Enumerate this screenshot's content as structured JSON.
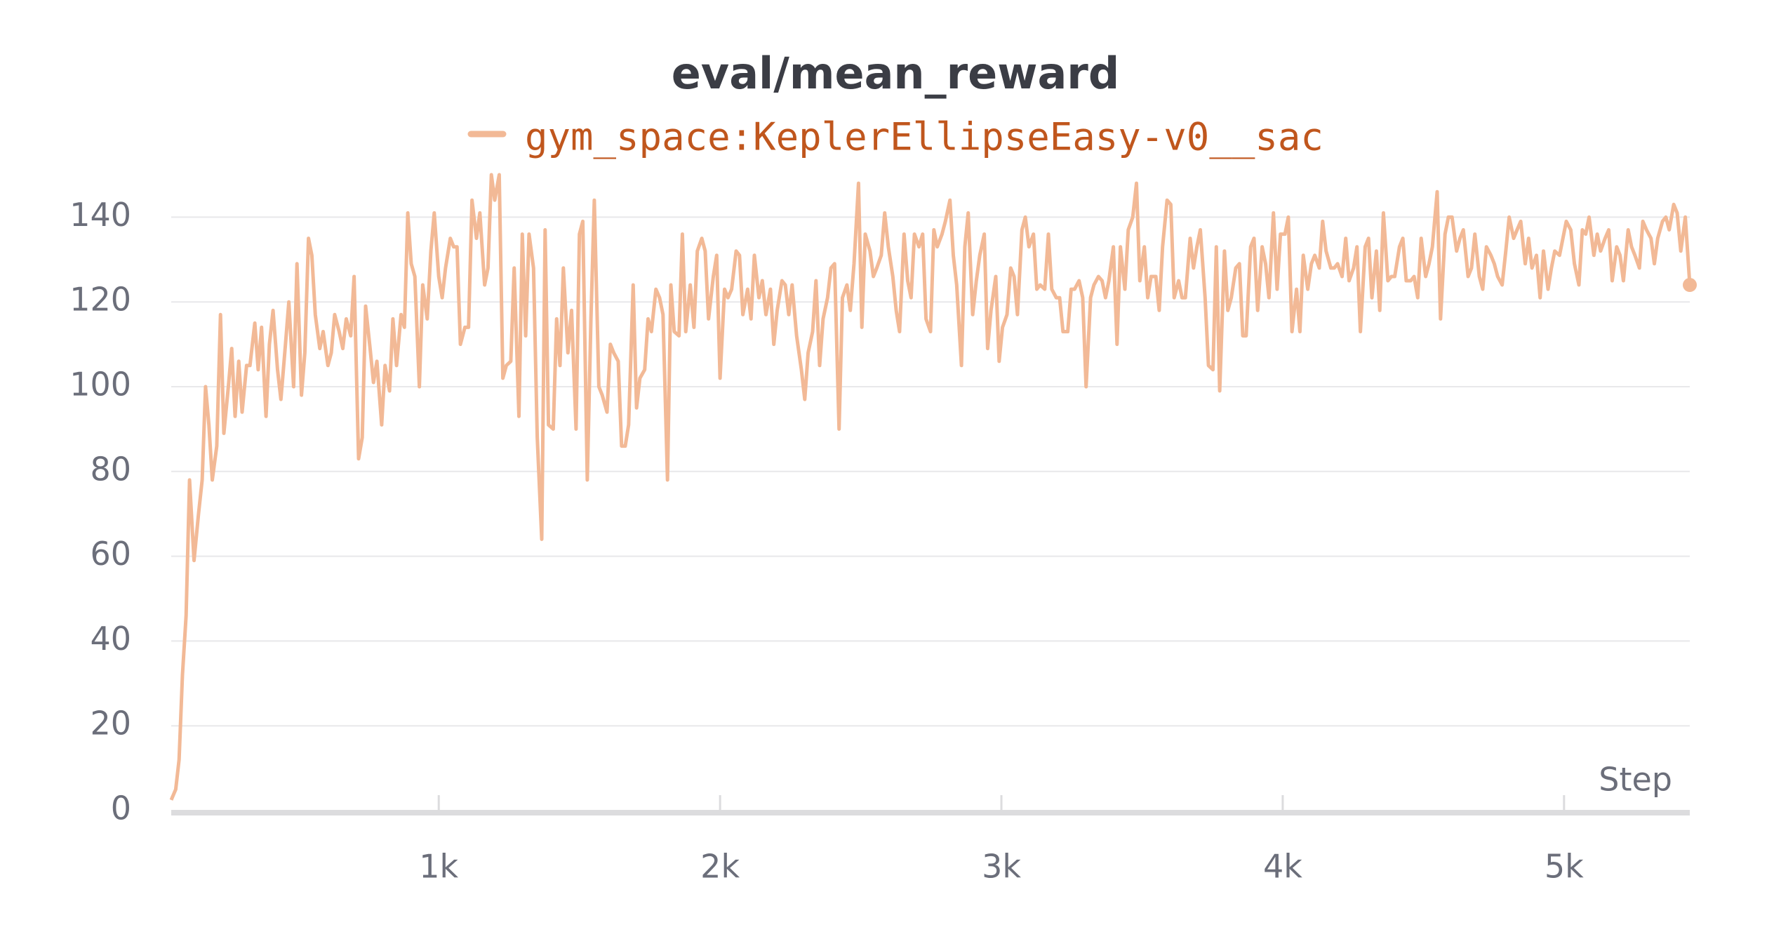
{
  "chart_data": {
    "type": "line",
    "title": "eval/mean_reward",
    "x_label": "Step",
    "x": [
      49,
      65,
      77,
      89,
      102,
      114,
      130,
      146,
      159,
      171,
      183,
      195,
      211,
      224,
      236,
      252,
      264,
      276,
      289,
      301,
      317,
      329,
      346,
      358,
      370,
      386,
      398,
      411,
      427,
      439,
      455,
      467,
      484,
      496,
      512,
      524,
      537,
      549,
      561,
      577,
      589,
      606,
      618,
      630,
      646,
      659,
      671,
      687,
      699,
      715,
      728,
      740,
      756,
      768,
      780,
      797,
      809,
      825,
      837,
      850,
      866,
      878,
      890,
      902,
      915,
      931,
      943,
      959,
      972,
      984,
      1000,
      1012,
      1024,
      1041,
      1053,
      1065,
      1077,
      1093,
      1106,
      1118,
      1134,
      1146,
      1163,
      1175,
      1187,
      1199,
      1215,
      1228,
      1240,
      1256,
      1268,
      1285,
      1297,
      1309,
      1321,
      1337,
      1350,
      1366,
      1378,
      1390,
      1407,
      1419,
      1431,
      1443,
      1459,
      1472,
      1488,
      1500,
      1512,
      1528,
      1541,
      1553,
      1569,
      1581,
      1598,
      1610,
      1622,
      1638,
      1650,
      1663,
      1675,
      1691,
      1703,
      1715,
      1732,
      1744,
      1756,
      1772,
      1785,
      1797,
      1813,
      1825,
      1837,
      1854,
      1866,
      1878,
      1894,
      1907,
      1919,
      1935,
      1947,
      1959,
      1976,
      1988,
      2000,
      2016,
      2028,
      2041,
      2057,
      2069,
      2081,
      2098,
      2110,
      2122,
      2138,
      2150,
      2163,
      2179,
      2191,
      2203,
      2220,
      2232,
      2244,
      2256,
      2272,
      2289,
      2301,
      2313,
      2329,
      2341,
      2354,
      2366,
      2382,
      2394,
      2407,
      2423,
      2435,
      2451,
      2463,
      2476,
      2492,
      2504,
      2516,
      2533,
      2545,
      2557,
      2573,
      2585,
      2598,
      2614,
      2626,
      2638,
      2654,
      2667,
      2679,
      2691,
      2707,
      2720,
      2732,
      2748,
      2760,
      2772,
      2789,
      2801,
      2817,
      2829,
      2841,
      2858,
      2870,
      2882,
      2898,
      2911,
      2923,
      2939,
      2951,
      2963,
      2980,
      2992,
      3004,
      3020,
      3033,
      3045,
      3057,
      3073,
      3085,
      3098,
      3114,
      3126,
      3138,
      3154,
      3167,
      3179,
      3195,
      3207,
      3219,
      3236,
      3248,
      3260,
      3276,
      3289,
      3301,
      3317,
      3329,
      3345,
      3358,
      3370,
      3382,
      3398,
      3411,
      3423,
      3439,
      3451,
      3467,
      3480,
      3492,
      3508,
      3520,
      3532,
      3549,
      3561,
      3573,
      3589,
      3602,
      3614,
      3630,
      3642,
      3654,
      3671,
      3683,
      3695,
      3707,
      3724,
      3736,
      3752,
      3764,
      3776,
      3793,
      3805,
      3817,
      3833,
      3846,
      3858,
      3870,
      3886,
      3898,
      3911,
      3927,
      3939,
      3951,
      3967,
      3980,
      3992,
      4008,
      4020,
      4033,
      4049,
      4061,
      4073,
      4089,
      4102,
      4114,
      4130,
      4142,
      4154,
      4171,
      4183,
      4195,
      4211,
      4224,
      4236,
      4252,
      4264,
      4276,
      4293,
      4305,
      4317,
      4333,
      4345,
      4358,
      4374,
      4386,
      4398,
      4415,
      4427,
      4439,
      4455,
      4467,
      4480,
      4492,
      4508,
      4520,
      4532,
      4549,
      4561,
      4577,
      4589,
      4602,
      4618,
      4630,
      4642,
      4659,
      4671,
      4683,
      4699,
      4711,
      4724,
      4740,
      4752,
      4764,
      4780,
      4793,
      4805,
      4821,
      4833,
      4846,
      4862,
      4874,
      4886,
      4902,
      4915,
      4927,
      4943,
      4955,
      4967,
      4984,
      4996,
      5008,
      5024,
      5037,
      5053,
      5065,
      5077,
      5089,
      5106,
      5118,
      5130,
      5146,
      5159,
      5171,
      5187,
      5199,
      5211,
      5228,
      5240,
      5252,
      5268,
      5280,
      5293,
      5309,
      5321,
      5333,
      5350,
      5362,
      5374,
      5390,
      5402,
      5415,
      5431,
      5447
    ],
    "series": [
      {
        "name": "gym_space:KeplerEllipseEasy-v0__sac",
        "color": "#f2b996",
        "values": [
          2.5,
          5,
          12,
          32,
          46,
          78,
          59,
          70,
          78,
          100,
          91,
          78,
          86,
          117,
          89,
          100,
          109,
          93,
          106,
          94,
          105,
          105,
          115,
          104,
          114,
          93,
          110,
          118,
          104,
          97,
          110,
          120,
          100,
          129,
          98,
          108,
          135,
          131,
          117,
          109,
          113,
          105,
          108,
          117,
          113,
          109,
          116,
          112,
          126,
          83,
          88,
          119,
          109,
          101,
          106,
          91,
          105,
          99,
          116,
          105,
          117,
          114,
          141,
          129,
          126,
          100,
          124,
          116,
          132,
          141,
          126,
          121,
          128,
          135,
          133,
          133,
          110,
          114,
          114,
          144,
          135,
          141,
          124,
          128,
          150,
          144,
          150,
          102,
          105,
          106,
          128,
          93,
          136,
          112,
          136,
          128,
          88,
          64,
          137,
          91,
          90,
          116,
          105,
          128,
          108,
          118,
          90,
          136,
          139,
          78,
          116,
          144,
          100,
          98,
          94,
          110,
          108,
          106,
          86,
          86,
          91,
          124,
          95,
          102,
          104,
          116,
          113,
          123,
          121,
          117,
          78,
          124,
          113,
          112,
          136,
          113,
          124,
          114,
          132,
          135,
          132,
          116,
          126,
          131,
          102,
          123,
          121,
          123,
          132,
          131,
          117,
          123,
          116,
          131,
          121,
          125,
          117,
          123,
          110,
          118,
          125,
          124,
          117,
          124,
          112,
          104,
          97,
          108,
          113,
          125,
          105,
          116,
          121,
          128,
          129,
          90,
          121,
          124,
          118,
          129,
          148,
          114,
          136,
          132,
          126,
          128,
          131,
          141,
          133,
          126,
          118,
          113,
          136,
          125,
          121,
          136,
          133,
          136,
          116,
          113,
          137,
          133,
          136,
          139,
          144,
          131,
          124,
          105,
          133,
          141,
          117,
          125,
          131,
          136,
          109,
          118,
          126,
          106,
          114,
          117,
          128,
          126,
          117,
          137,
          140,
          133,
          136,
          123,
          124,
          123,
          136,
          123,
          121,
          121,
          113,
          113,
          123,
          123,
          125,
          121,
          100,
          121,
          124,
          126,
          125,
          121,
          125,
          133,
          110,
          133,
          123,
          137,
          140,
          148,
          125,
          133,
          121,
          126,
          126,
          118,
          133,
          144,
          143,
          121,
          125,
          121,
          121,
          135,
          128,
          133,
          137,
          121,
          105,
          104,
          133,
          99,
          132,
          118,
          121,
          128,
          129,
          112,
          112,
          133,
          135,
          118,
          133,
          129,
          121,
          141,
          123,
          136,
          136,
          140,
          113,
          123,
          113,
          131,
          123,
          129,
          131,
          128,
          139,
          132,
          128,
          128,
          129,
          126,
          135,
          125,
          128,
          133,
          113,
          133,
          135,
          121,
          132,
          118,
          141,
          125,
          126,
          126,
          133,
          135,
          125,
          125,
          126,
          121,
          135,
          126,
          129,
          133,
          146,
          116,
          136,
          140,
          140,
          132,
          135,
          137,
          126,
          128,
          136,
          126,
          123,
          133,
          131,
          129,
          126,
          124,
          132,
          140,
          135,
          137,
          139,
          129,
          135,
          128,
          131,
          121,
          132,
          123,
          128,
          132,
          131,
          135,
          139,
          137,
          129,
          124,
          137,
          136,
          140,
          131,
          136,
          132,
          135,
          137,
          125,
          133,
          131,
          125,
          137,
          133,
          131,
          128,
          139,
          137,
          135,
          129,
          135,
          139,
          140,
          137,
          143,
          141,
          132,
          140,
          124
        ]
      }
    ],
    "xlim": [
      49,
      5447
    ],
    "ylim": [
      0,
      150
    ],
    "xticks": [
      {
        "value": 1000,
        "label": "1k"
      },
      {
        "value": 2000,
        "label": "2k"
      },
      {
        "value": 3000,
        "label": "3k"
      },
      {
        "value": 4000,
        "label": "4k"
      },
      {
        "value": 5000,
        "label": "5k"
      }
    ],
    "yticks": [
      0,
      20,
      40,
      60,
      80,
      100,
      120,
      140
    ],
    "grid": true
  }
}
